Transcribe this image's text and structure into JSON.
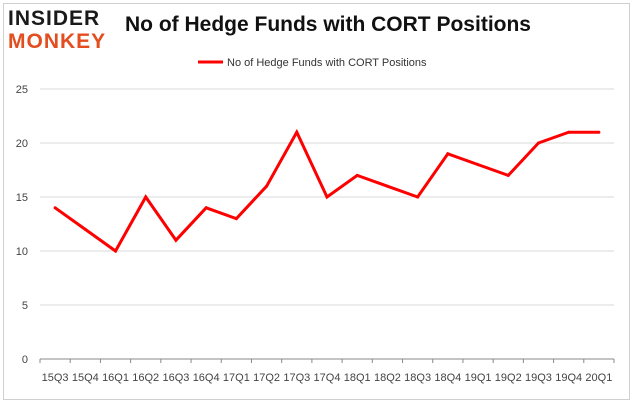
{
  "logo": {
    "line1": "INSIDER",
    "line2": "MONKEY"
  },
  "title": "No of Hedge Funds with CORT Positions",
  "colors": {
    "line": "#ff0000",
    "grid": "#d9d9d9",
    "axis": "#888888",
    "logo_accent": "#e34d1f"
  },
  "chart_data": {
    "type": "line",
    "title": "No of Hedge Funds with CORT Positions",
    "xlabel": "",
    "ylabel": "",
    "categories": [
      "15Q3",
      "15Q4",
      "16Q1",
      "16Q2",
      "16Q3",
      "16Q4",
      "17Q1",
      "17Q2",
      "17Q3",
      "17Q4",
      "18Q1",
      "18Q2",
      "18Q3",
      "18Q4",
      "19Q1",
      "19Q2",
      "19Q3",
      "19Q4",
      "20Q1"
    ],
    "series": [
      {
        "name": "No of Hedge Funds with CORT Positions",
        "values": [
          14,
          12,
          10,
          15,
          11,
          14,
          13,
          16,
          21,
          15,
          17,
          16,
          15,
          19,
          18,
          17,
          20,
          21,
          21
        ]
      }
    ],
    "ylim": [
      0,
      25
    ],
    "yticks": [
      0,
      5,
      10,
      15,
      20,
      25
    ],
    "grid": true,
    "legend_position": "top-center"
  }
}
